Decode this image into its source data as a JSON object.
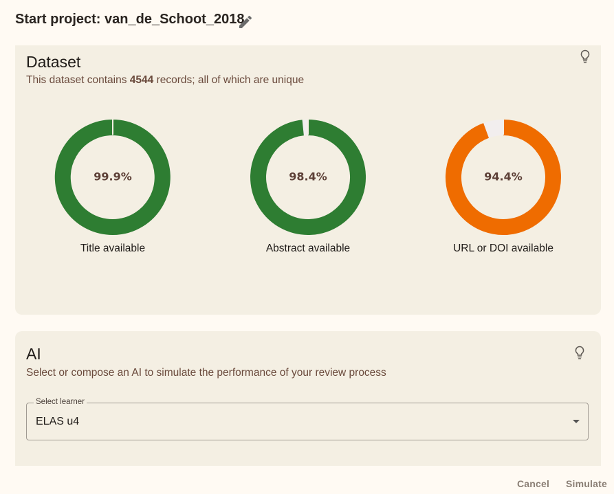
{
  "header": {
    "title": "Start project: van_de_Schoot_2018"
  },
  "dataset": {
    "heading": "Dataset",
    "summary_prefix": "This dataset contains ",
    "record_count": "4544",
    "summary_suffix": " records; all of which are unique",
    "metrics": [
      {
        "percent_text": "99.9%",
        "value": 99.9,
        "label": "Title available",
        "color": "#2e7d32"
      },
      {
        "percent_text": "98.4%",
        "value": 98.4,
        "label": "Abstract available",
        "color": "#2e7d32"
      },
      {
        "percent_text": "94.4%",
        "value": 94.4,
        "label": "URL or DOI available",
        "color": "#ef6c00"
      }
    ]
  },
  "ai": {
    "heading": "AI",
    "description": "Select or compose an AI to simulate the performance of your review process",
    "learner_label": "Select learner",
    "learner_value": "ELAS u4"
  },
  "footer": {
    "cancel_label": "Cancel",
    "simulate_label": "Simulate"
  },
  "colors": {
    "background": "#fffaf3",
    "card": "#f4efe3",
    "success": "#2e7d32",
    "warning": "#ef6c00",
    "remainder": "#f2eeee"
  }
}
